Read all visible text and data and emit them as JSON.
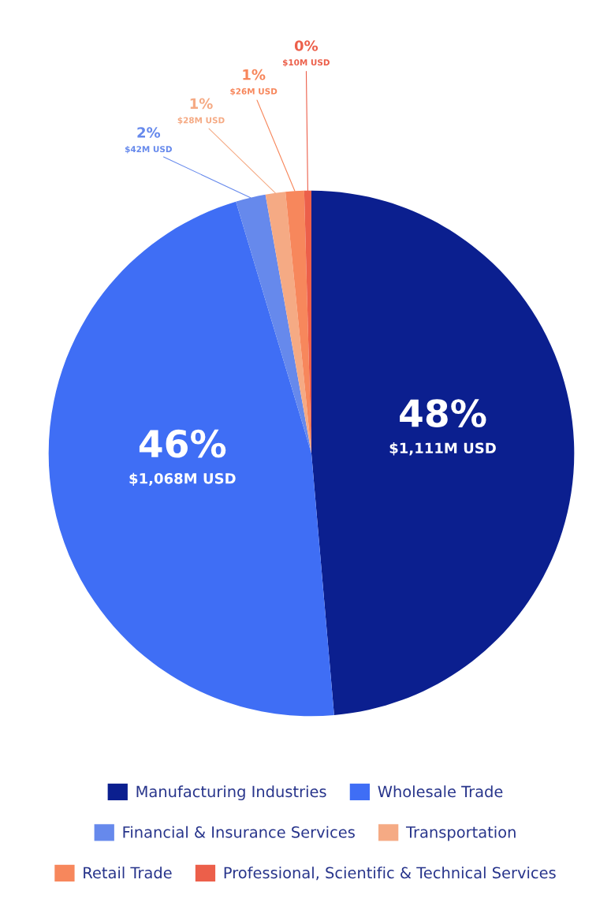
{
  "chart_data": {
    "type": "pie",
    "categories": [
      "Manufacturing Industries",
      "Wholesale Trade",
      "Financial & Insurance Services",
      "Transportation",
      "Retail Trade",
      "Professional, Scientific & Technical Services"
    ],
    "values": [
      1111,
      1068,
      42,
      28,
      26,
      10
    ],
    "colors": [
      "#0b1f8f",
      "#3f6ef5",
      "#6689ec",
      "#f5aa84",
      "#f7875c",
      "#ec5f4a"
    ],
    "value_labels": [
      "$1,111M USD",
      "$1,068M USD",
      "$42M USD",
      "$28M USD",
      "$26M USD",
      "$10M USD"
    ],
    "annotations": [
      {
        "text": "48%",
        "x": "Manufacturing Industries"
      },
      {
        "text": "46%",
        "x": "Wholesale Trade"
      },
      {
        "text": "2%",
        "x": "Financial & Insurance Services"
      },
      {
        "text": "1%",
        "x": "Transportation"
      },
      {
        "text": "1%",
        "x": "Retail Trade"
      },
      {
        "text": "0%",
        "x": "Professional, Scientific & Technical Services"
      }
    ],
    "legend": "bottom"
  }
}
